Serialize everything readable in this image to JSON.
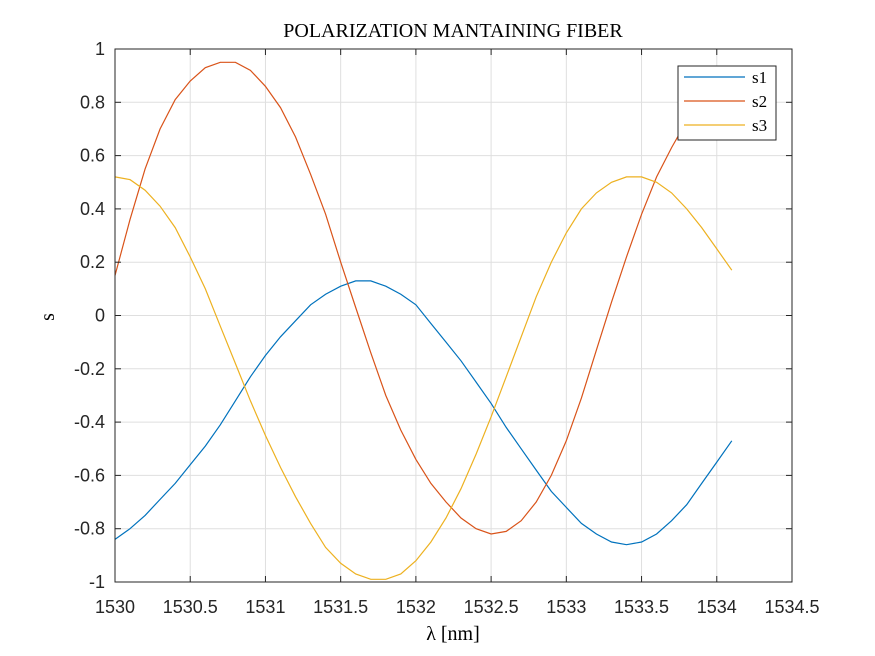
{
  "chart_data": {
    "type": "line",
    "title": "POLARIZATION MANTAINING FIBER",
    "xlabel": "λ [nm]",
    "ylabel": "s",
    "xlim": [
      1530,
      1534.5
    ],
    "ylim": [
      -1,
      1
    ],
    "xticks": [
      {
        "value": 1530,
        "label": "1530"
      },
      {
        "value": 1530.5,
        "label": "1530.5"
      },
      {
        "value": 1531,
        "label": "1531"
      },
      {
        "value": 1531.5,
        "label": "1531.5"
      },
      {
        "value": 1532,
        "label": "1532"
      },
      {
        "value": 1532.5,
        "label": "1532.5"
      },
      {
        "value": 1533,
        "label": "1533"
      },
      {
        "value": 1533.5,
        "label": "1533.5"
      },
      {
        "value": 1534,
        "label": "1534"
      },
      {
        "value": 1534.5,
        "label": "1534.5"
      }
    ],
    "yticks": [
      {
        "value": -1,
        "label": "-1"
      },
      {
        "value": -0.8,
        "label": "-0.8"
      },
      {
        "value": -0.6,
        "label": "-0.6"
      },
      {
        "value": -0.4,
        "label": "-0.4"
      },
      {
        "value": -0.2,
        "label": "-0.2"
      },
      {
        "value": 0,
        "label": "0"
      },
      {
        "value": 0.2,
        "label": "0.2"
      },
      {
        "value": 0.4,
        "label": "0.4"
      },
      {
        "value": 0.6,
        "label": "0.6"
      },
      {
        "value": 0.8,
        "label": "0.8"
      },
      {
        "value": 1,
        "label": "1"
      }
    ],
    "grid": true,
    "legend_position": "top-right",
    "series": [
      {
        "name": "s1",
        "color": "#0072BD",
        "x": [
          1530,
          1530.1,
          1530.2,
          1530.3,
          1530.4,
          1530.5,
          1530.6,
          1530.7,
          1530.8,
          1530.9,
          1531,
          1531.1,
          1531.2,
          1531.3,
          1531.4,
          1531.5,
          1531.6,
          1531.7,
          1531.8,
          1531.9,
          1532,
          1532.1,
          1532.2,
          1532.3,
          1532.4,
          1532.5,
          1532.6,
          1532.7,
          1532.8,
          1532.9,
          1533,
          1533.1,
          1533.2,
          1533.3,
          1533.4,
          1533.5,
          1533.6,
          1533.7,
          1533.8,
          1533.9,
          1534,
          1534.1
        ],
        "y": [
          -0.84,
          -0.8,
          -0.75,
          -0.69,
          -0.63,
          -0.56,
          -0.49,
          -0.41,
          -0.32,
          -0.23,
          -0.15,
          -0.08,
          -0.02,
          0.04,
          0.08,
          0.11,
          0.13,
          0.13,
          0.11,
          0.08,
          0.04,
          -0.03,
          -0.1,
          -0.17,
          -0.25,
          -0.33,
          -0.42,
          -0.5,
          -0.58,
          -0.66,
          -0.72,
          -0.78,
          -0.82,
          -0.85,
          -0.86,
          -0.85,
          -0.82,
          -0.77,
          -0.71,
          -0.63,
          -0.55,
          -0.47
        ]
      },
      {
        "name": "s2",
        "color": "#D95319",
        "x": [
          1530,
          1530.1,
          1530.2,
          1530.3,
          1530.4,
          1530.5,
          1530.6,
          1530.7,
          1530.8,
          1530.9,
          1531,
          1531.1,
          1531.2,
          1531.3,
          1531.4,
          1531.5,
          1531.6,
          1531.7,
          1531.8,
          1531.9,
          1532,
          1532.1,
          1532.2,
          1532.3,
          1532.4,
          1532.5,
          1532.6,
          1532.7,
          1532.8,
          1532.9,
          1533,
          1533.1,
          1533.2,
          1533.3,
          1533.4,
          1533.5,
          1533.6,
          1533.7,
          1533.8,
          1533.9
        ],
        "y": [
          0.15,
          0.36,
          0.55,
          0.7,
          0.81,
          0.88,
          0.93,
          0.95,
          0.95,
          0.92,
          0.86,
          0.78,
          0.67,
          0.53,
          0.38,
          0.2,
          0.03,
          -0.14,
          -0.3,
          -0.43,
          -0.54,
          -0.63,
          -0.7,
          -0.76,
          -0.8,
          -0.82,
          -0.81,
          -0.77,
          -0.7,
          -0.6,
          -0.47,
          -0.31,
          -0.13,
          0.05,
          0.22,
          0.38,
          0.52,
          0.63,
          0.73,
          0.8
        ]
      },
      {
        "name": "s3",
        "color": "#EDB120",
        "x": [
          1530,
          1530.1,
          1530.2,
          1530.3,
          1530.4,
          1530.5,
          1530.6,
          1530.7,
          1530.8,
          1530.9,
          1531,
          1531.1,
          1531.2,
          1531.3,
          1531.4,
          1531.5,
          1531.6,
          1531.7,
          1531.8,
          1531.9,
          1532,
          1532.1,
          1532.2,
          1532.3,
          1532.4,
          1532.5,
          1532.6,
          1532.7,
          1532.8,
          1532.9,
          1533,
          1533.1,
          1533.2,
          1533.3,
          1533.4,
          1533.5,
          1533.6,
          1533.7,
          1533.8,
          1533.9,
          1534,
          1534.1
        ],
        "y": [
          0.52,
          0.51,
          0.47,
          0.41,
          0.33,
          0.22,
          0.1,
          -0.04,
          -0.18,
          -0.32,
          -0.45,
          -0.57,
          -0.68,
          -0.78,
          -0.87,
          -0.93,
          -0.97,
          -0.99,
          -0.99,
          -0.97,
          -0.92,
          -0.85,
          -0.76,
          -0.65,
          -0.52,
          -0.38,
          -0.23,
          -0.08,
          0.07,
          0.2,
          0.31,
          0.4,
          0.46,
          0.5,
          0.52,
          0.52,
          0.5,
          0.46,
          0.4,
          0.33,
          0.25,
          0.17
        ]
      }
    ]
  }
}
